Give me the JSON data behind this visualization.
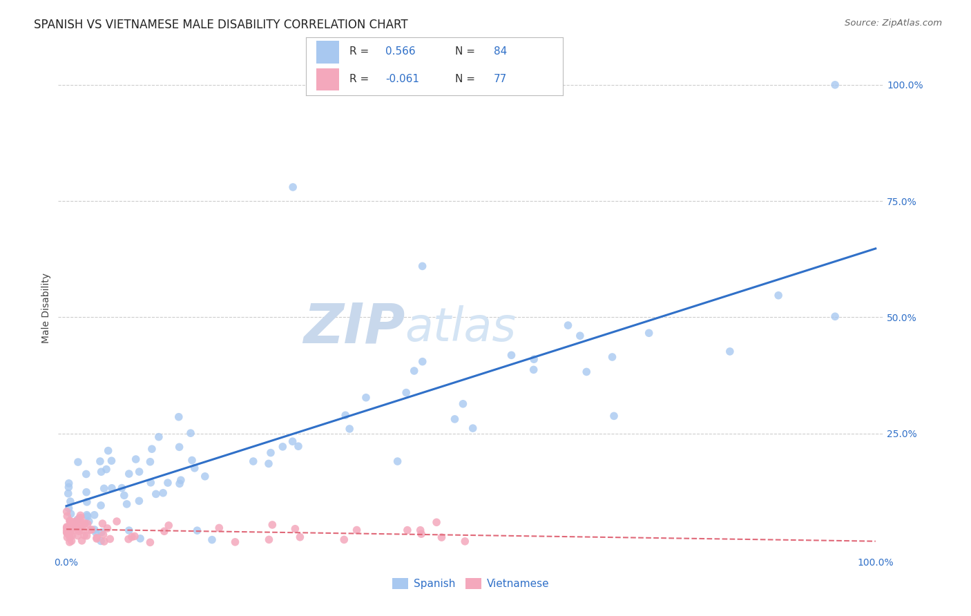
{
  "title": "SPANISH VS VIETNAMESE MALE DISABILITY CORRELATION CHART",
  "source": "Source: ZipAtlas.com",
  "ylabel": "Male Disability",
  "spanish_R": 0.566,
  "spanish_N": 84,
  "vietnamese_R": -0.061,
  "vietnamese_N": 77,
  "spanish_color": "#A8C8F0",
  "vietnamese_color": "#F4A8BC",
  "spanish_line_color": "#3070C8",
  "vietnamese_line_color": "#E06878",
  "grid_color": "#CCCCCC",
  "background_color": "#FFFFFF",
  "watermark": "ZIPatlas",
  "watermark_color": "#D8E4F2",
  "legend_label_spanish": "Spanish",
  "legend_label_vietnamese": "Vietnamese",
  "xlim": [
    0.0,
    1.0
  ],
  "ylim": [
    0.0,
    1.05
  ]
}
